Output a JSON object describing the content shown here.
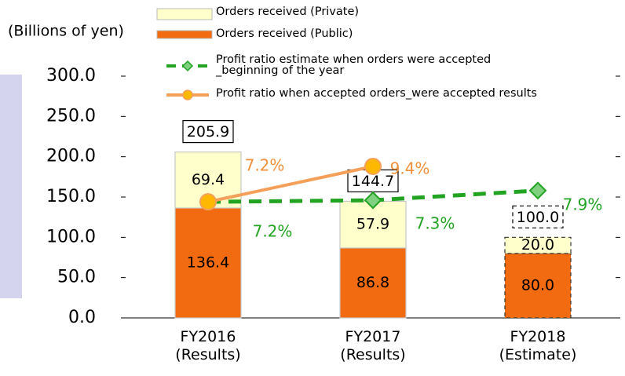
{
  "chart_data": {
    "type": "stacked_bar_line",
    "y_label": "(Billions of yen)",
    "categories": [
      "FY2016\n(Results)",
      "FY2017\n(Results)",
      "FY2018\n(Estimate)"
    ],
    "series": [
      {
        "name": "Orders received (Public)",
        "color": "#f26b10",
        "values": [
          136.4,
          86.8,
          80
        ],
        "value_labels": [
          "136.4",
          "86.8",
          "80.0"
        ]
      },
      {
        "name": "Orders received (Private)",
        "color": "#ffffcc",
        "values": [
          69.4,
          57.9,
          20
        ],
        "value_labels": [
          "69.4",
          "57.9",
          "20.0"
        ]
      },
      {
        "name": "Profit ratio estimate when orders were accepted\n_beginning of the year",
        "type": "line",
        "axis": "y2",
        "color": "#22a322",
        "dashed": true,
        "marker": "diamond",
        "values": [
          7.2,
          7.3,
          7.9
        ],
        "value_labels": [
          "7.2%",
          "7.3%",
          "7.9%"
        ]
      },
      {
        "name": "Profit ratio when accepted orders_were accepted results",
        "type": "line",
        "axis": "y2",
        "color": "#f5a05a",
        "marker_color": "#ffb800",
        "dashed": false,
        "marker": "circle",
        "values": [
          7.2,
          9.4,
          null
        ],
        "value_labels": [
          "7.2%",
          "9.4%",
          null
        ]
      }
    ],
    "totals": [
      205.9,
      144.7,
      100
    ],
    "total_labels": [
      "205.9",
      "144.7",
      "100.0"
    ],
    "outline_dashed": [
      false,
      false,
      true
    ],
    "ylim": [
      0,
      300
    ],
    "yticks": [
      {
        "value": 0,
        "label": "0.0"
      },
      {
        "value": 50,
        "label": "50.0"
      },
      {
        "value": 100,
        "label": "100.0"
      },
      {
        "value": 150,
        "label": "150.0"
      },
      {
        "value": 200,
        "label": "200.0"
      },
      {
        "value": 250,
        "label": "250.0"
      },
      {
        "value": 300,
        "label": "300.0"
      }
    ],
    "y2lim": [
      0,
      15
    ],
    "grid": false
  }
}
